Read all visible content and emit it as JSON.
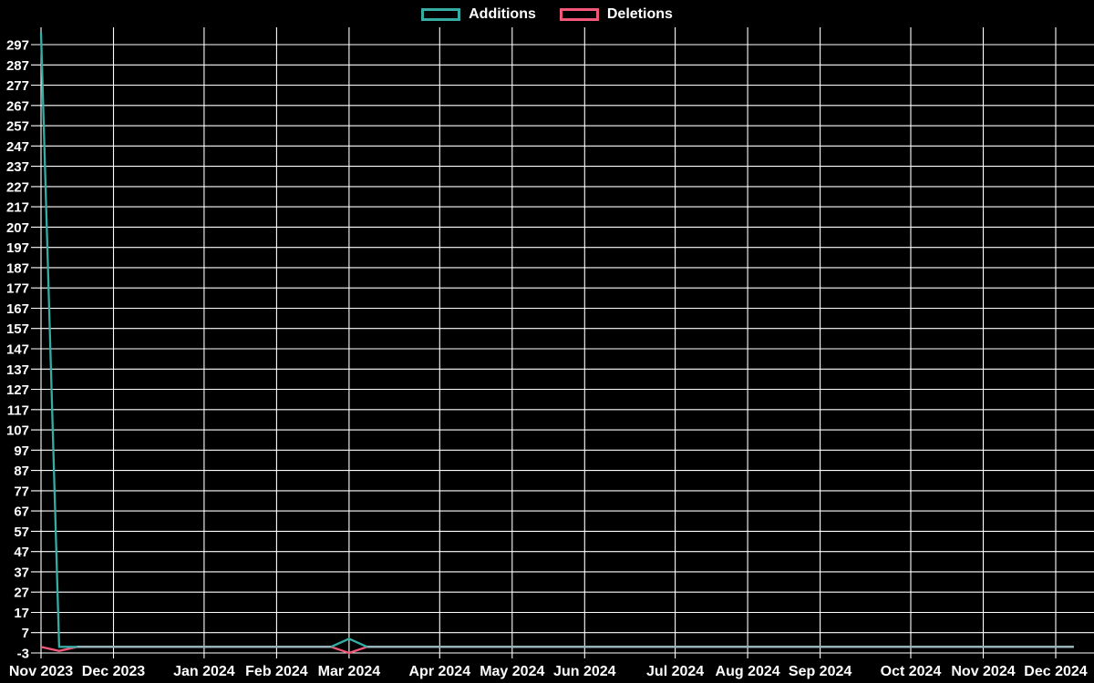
{
  "page": {
    "background": "#000000",
    "text_color": "#ffffff",
    "grid_color": "#ffffff"
  },
  "legend": {
    "items": [
      {
        "label": "Additions",
        "color": "#35aca4"
      },
      {
        "label": "Deletions",
        "color": "#f25879"
      }
    ]
  },
  "chart_data": {
    "type": "line",
    "title": "",
    "grid": true,
    "legend_position": "top-center",
    "x_unit": "week",
    "n_points": 58,
    "ylim": [
      -6,
      306
    ],
    "y_ticks": [
      297,
      287,
      277,
      267,
      257,
      247,
      237,
      227,
      217,
      207,
      197,
      187,
      177,
      167,
      157,
      147,
      137,
      127,
      117,
      107,
      97,
      87,
      77,
      67,
      57,
      47,
      37,
      27,
      17,
      7,
      -3
    ],
    "x_ticks": [
      {
        "label": "Nov 2023",
        "week": 0
      },
      {
        "label": "Dec 2023",
        "week": 4
      },
      {
        "label": "Jan 2024",
        "week": 9
      },
      {
        "label": "Feb 2024",
        "week": 13
      },
      {
        "label": "Mar 2024",
        "week": 17
      },
      {
        "label": "Apr 2024",
        "week": 22
      },
      {
        "label": "May 2024",
        "week": 26
      },
      {
        "label": "Jun 2024",
        "week": 30
      },
      {
        "label": "Jul 2024",
        "week": 35
      },
      {
        "label": "Aug 2024",
        "week": 39
      },
      {
        "label": "Sep 2024",
        "week": 43
      },
      {
        "label": "Oct 2024",
        "week": 48
      },
      {
        "label": "Nov 2024",
        "week": 52
      },
      {
        "label": "Dec 2024",
        "week": 56
      }
    ],
    "series": [
      {
        "name": "Additions",
        "color": "#35aca4",
        "values": [
          303,
          0,
          0,
          0,
          0,
          0,
          0,
          0,
          0,
          0,
          0,
          0,
          0,
          0,
          0,
          0,
          0,
          4,
          0,
          0,
          0,
          0,
          0,
          0,
          0,
          0,
          0,
          0,
          0,
          0,
          0,
          0,
          0,
          0,
          0,
          0,
          0,
          0,
          0,
          0,
          0,
          0,
          0,
          0,
          0,
          0,
          0,
          0,
          0,
          0,
          0,
          0,
          0,
          0,
          0,
          0,
          0,
          0
        ]
      },
      {
        "name": "Deletions",
        "color": "#f25879",
        "values": [
          0,
          -2,
          0,
          0,
          0,
          0,
          0,
          0,
          0,
          0,
          0,
          0,
          0,
          0,
          0,
          0,
          0,
          -3,
          0,
          0,
          0,
          0,
          0,
          0,
          0,
          0,
          0,
          0,
          0,
          0,
          0,
          0,
          0,
          0,
          0,
          0,
          0,
          0,
          0,
          0,
          0,
          0,
          0,
          0,
          0,
          0,
          0,
          0,
          0,
          0,
          0,
          0,
          0,
          0,
          0,
          0,
          0,
          0
        ]
      }
    ],
    "overlap_color": "#9cb4bd"
  }
}
